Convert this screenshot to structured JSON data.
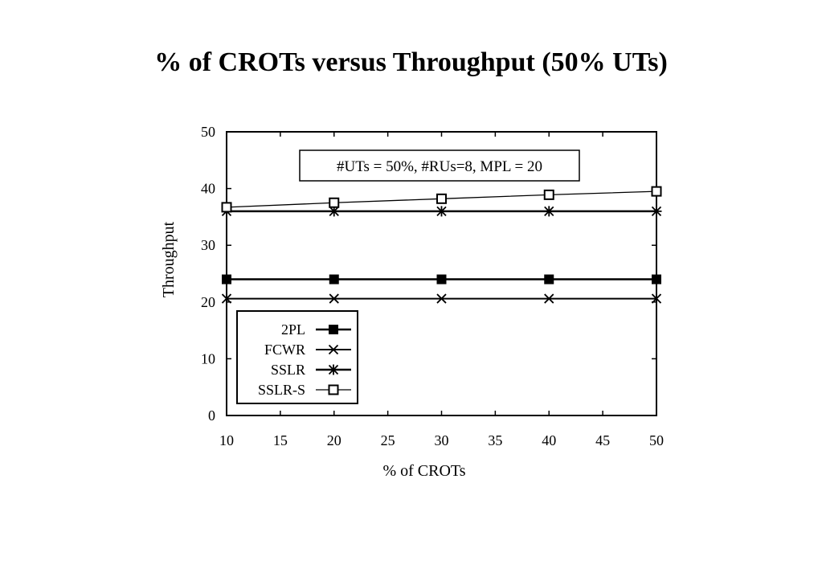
{
  "slide": {
    "title": "% of CROTs versus Throughput (50% UTs)"
  },
  "chart_data": {
    "type": "line",
    "xlabel": "% of CROTs",
    "ylabel": "Throughput",
    "xlim": [
      10,
      50
    ],
    "ylim": [
      0,
      50
    ],
    "xticks": [
      10,
      15,
      20,
      25,
      30,
      35,
      40,
      45,
      50
    ],
    "yticks": [
      0,
      10,
      20,
      30,
      40,
      50
    ],
    "grid": false,
    "legend_position": "bottom-left",
    "annotation": "#UTs = 50%, #RUs=8, MPL = 20",
    "x": [
      10,
      20,
      30,
      40,
      50
    ],
    "series": [
      {
        "name": "2PL",
        "marker": "filled-square",
        "values": [
          24,
          24,
          24,
          24,
          24
        ]
      },
      {
        "name": "FCWR",
        "marker": "x",
        "values": [
          20.6,
          20.6,
          20.6,
          20.6,
          20.6
        ]
      },
      {
        "name": "SSLR",
        "marker": "star",
        "values": [
          36,
          36,
          36,
          36,
          36
        ]
      },
      {
        "name": "SSLR-S",
        "marker": "open-square",
        "values": [
          36.7,
          37.5,
          38.2,
          38.9,
          39.5
        ]
      }
    ]
  }
}
